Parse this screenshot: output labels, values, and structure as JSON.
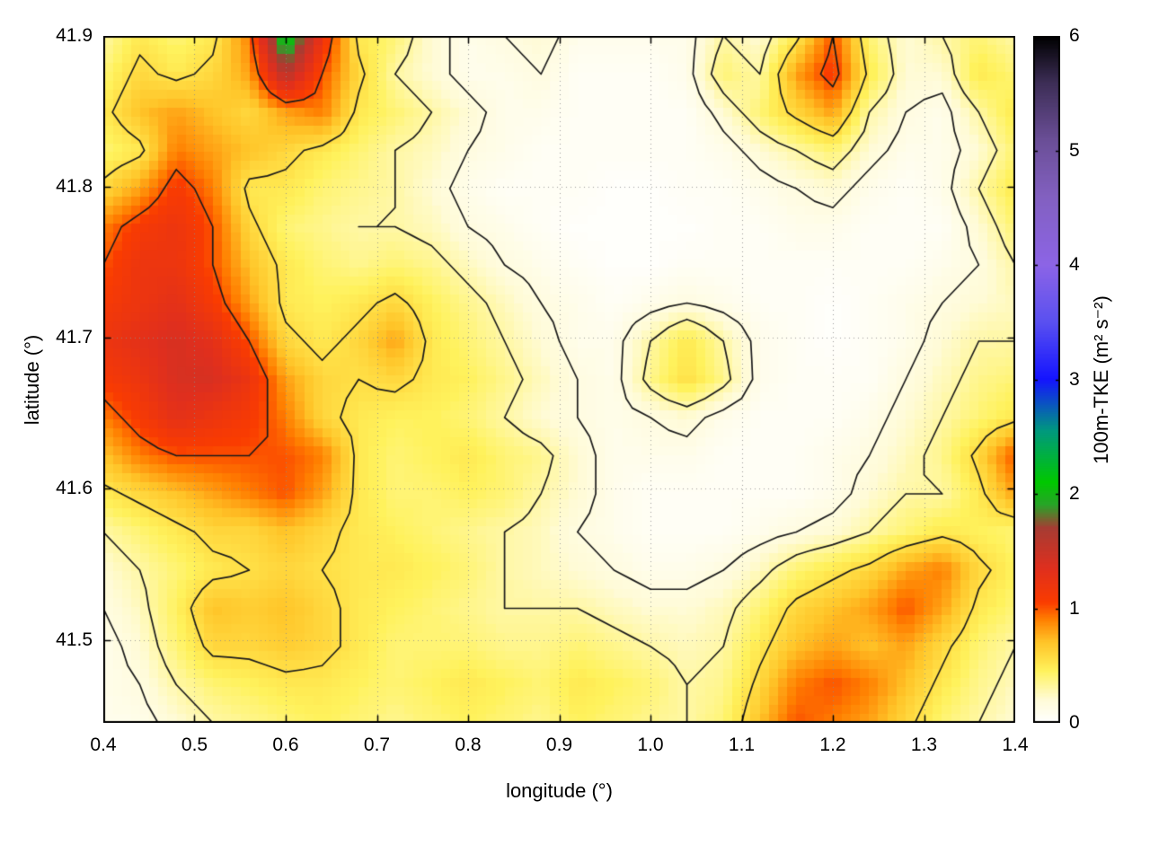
{
  "chart_data": {
    "type": "heatmap",
    "title": "",
    "xlabel": "longitude (°)",
    "ylabel": "latitude (°)",
    "x_range": [
      0.4,
      1.4
    ],
    "y_range": [
      41.445,
      41.9
    ],
    "x_tick_values": [
      0.4,
      0.5,
      0.6,
      0.7,
      0.8,
      0.9,
      1.0,
      1.1,
      1.2,
      1.3,
      1.4
    ],
    "x_tick_labels": [
      "0.4",
      "0.5",
      "0.6",
      "0.7",
      "0.8",
      "0.9",
      "1.0",
      "1.1",
      "1.2",
      "1.3",
      "1.4"
    ],
    "y_tick_values": [
      41.5,
      41.6,
      41.7,
      41.8,
      41.9
    ],
    "y_tick_labels": [
      "41.5",
      "41.6",
      "41.7",
      "41.8",
      "41.9"
    ],
    "grid_on": true,
    "colorbar": {
      "label": "100m-TKE (m² s⁻²)",
      "range": [
        0,
        6
      ],
      "tick_values": [
        0,
        1,
        2,
        3,
        4,
        5,
        6
      ],
      "tick_labels": [
        "0",
        "1",
        "2",
        "3",
        "4",
        "5",
        "6"
      ]
    },
    "palette": [
      [
        0.0,
        "#ffffff"
      ],
      [
        0.2,
        "#fffbd6"
      ],
      [
        0.45,
        "#fff25c"
      ],
      [
        0.7,
        "#ffc428"
      ],
      [
        0.9,
        "#ff7f00"
      ],
      [
        1.05,
        "#fa3c00"
      ],
      [
        1.35,
        "#df2f1e"
      ],
      [
        1.7,
        "#a63c33"
      ],
      [
        1.9,
        "#28a428"
      ],
      [
        2.1,
        "#00c800"
      ],
      [
        2.55,
        "#00997e"
      ],
      [
        3.0,
        "#1414ff"
      ],
      [
        3.5,
        "#5a50f0"
      ],
      [
        4.0,
        "#8c64e6"
      ],
      [
        4.6,
        "#8260c0"
      ],
      [
        5.1,
        "#6a4e96"
      ],
      [
        5.6,
        "#3c2d55"
      ],
      [
        6.0,
        "#000000"
      ]
    ],
    "contour_levels": [
      0.15,
      0.3,
      0.55,
      1.0
    ],
    "contour_color": "#1b1b1b",
    "grid": {
      "nx": 26,
      "ny": 19,
      "lon_start": 0.4,
      "lon_step": 0.04,
      "lat_top": 41.9,
      "lat_step": -0.025,
      "values_rows_top_to_bottom": [
        [
          0.3,
          0.5,
          0.4,
          0.5,
          0.9,
          2.2,
          1.2,
          0.5,
          0.4,
          0.2,
          0.1,
          0.15,
          0.2,
          0.1,
          0.1,
          0.1,
          0.1,
          0.3,
          0.2,
          0.5,
          1.0,
          0.4,
          0.2,
          0.3,
          0.4,
          0.3
        ],
        [
          0.4,
          0.6,
          0.5,
          0.6,
          0.8,
          1.6,
          1.0,
          0.6,
          0.3,
          0.2,
          0.1,
          0.1,
          0.15,
          0.05,
          0.05,
          0.05,
          0.1,
          0.4,
          0.3,
          0.8,
          1.1,
          0.5,
          0.2,
          0.2,
          0.5,
          0.4
        ],
        [
          0.5,
          0.7,
          0.8,
          0.7,
          0.6,
          0.8,
          0.9,
          0.5,
          0.4,
          0.3,
          0.2,
          0.1,
          0.1,
          0.05,
          0.05,
          0.05,
          0.05,
          0.2,
          0.4,
          0.6,
          0.8,
          0.3,
          0.15,
          0.1,
          0.3,
          0.5
        ],
        [
          0.4,
          0.5,
          0.9,
          0.8,
          0.7,
          0.6,
          0.5,
          0.4,
          0.3,
          0.25,
          0.15,
          0.1,
          0.05,
          0.05,
          0.05,
          0.05,
          0.05,
          0.1,
          0.2,
          0.3,
          0.4,
          0.2,
          0.1,
          0.1,
          0.2,
          0.4
        ],
        [
          0.6,
          0.8,
          1.1,
          0.9,
          0.5,
          0.5,
          0.4,
          0.35,
          0.3,
          0.2,
          0.1,
          0.05,
          0.05,
          0.05,
          0.02,
          0.02,
          0.05,
          0.05,
          0.1,
          0.15,
          0.2,
          0.1,
          0.05,
          0.1,
          0.3,
          0.5
        ],
        [
          0.9,
          1.1,
          1.2,
          1.0,
          0.6,
          0.4,
          0.35,
          0.3,
          0.3,
          0.25,
          0.15,
          0.1,
          0.05,
          0.02,
          0.02,
          0.02,
          0.02,
          0.05,
          0.05,
          0.1,
          0.1,
          0.05,
          0.05,
          0.05,
          0.2,
          0.4
        ],
        [
          1.0,
          1.2,
          1.2,
          1.0,
          0.7,
          0.5,
          0.4,
          0.35,
          0.4,
          0.35,
          0.25,
          0.15,
          0.1,
          0.05,
          0.02,
          0.02,
          0.05,
          0.05,
          0.05,
          0.05,
          0.05,
          0.05,
          0.05,
          0.1,
          0.15,
          0.3
        ],
        [
          1.1,
          1.2,
          1.3,
          1.1,
          0.8,
          0.5,
          0.45,
          0.5,
          0.6,
          0.45,
          0.35,
          0.25,
          0.15,
          0.1,
          0.05,
          0.1,
          0.15,
          0.1,
          0.05,
          0.05,
          0.02,
          0.05,
          0.1,
          0.15,
          0.2,
          0.25
        ],
        [
          1.2,
          1.3,
          1.4,
          1.3,
          1.0,
          0.6,
          0.5,
          0.6,
          0.8,
          0.5,
          0.4,
          0.3,
          0.2,
          0.1,
          0.1,
          0.3,
          0.5,
          0.3,
          0.1,
          0.05,
          0.02,
          0.05,
          0.1,
          0.2,
          0.3,
          0.3
        ],
        [
          1.1,
          1.2,
          1.4,
          1.4,
          1.2,
          0.8,
          0.6,
          0.55,
          0.6,
          0.5,
          0.45,
          0.35,
          0.25,
          0.15,
          0.1,
          0.35,
          0.55,
          0.35,
          0.1,
          0.05,
          0.05,
          0.05,
          0.15,
          0.25,
          0.35,
          0.4
        ],
        [
          0.9,
          1.1,
          1.3,
          1.2,
          1.1,
          0.9,
          0.6,
          0.5,
          0.45,
          0.45,
          0.4,
          0.3,
          0.2,
          0.15,
          0.1,
          0.15,
          0.2,
          0.1,
          0.05,
          0.05,
          0.05,
          0.1,
          0.2,
          0.3,
          0.4,
          0.5
        ],
        [
          0.7,
          0.9,
          1.0,
          1.0,
          1.0,
          1.0,
          0.9,
          0.5,
          0.4,
          0.45,
          0.5,
          0.4,
          0.35,
          0.2,
          0.1,
          0.1,
          0.1,
          0.05,
          0.05,
          0.05,
          0.1,
          0.15,
          0.25,
          0.35,
          0.6,
          1.0
        ],
        [
          0.5,
          0.6,
          0.7,
          0.8,
          0.9,
          1.0,
          0.8,
          0.5,
          0.4,
          0.4,
          0.45,
          0.4,
          0.3,
          0.2,
          0.1,
          0.05,
          0.05,
          0.05,
          0.05,
          0.05,
          0.1,
          0.2,
          0.3,
          0.3,
          0.5,
          0.8
        ],
        [
          0.3,
          0.4,
          0.5,
          0.6,
          0.6,
          0.7,
          0.6,
          0.5,
          0.45,
          0.4,
          0.35,
          0.3,
          0.25,
          0.15,
          0.1,
          0.05,
          0.05,
          0.05,
          0.1,
          0.15,
          0.2,
          0.3,
          0.4,
          0.5,
          0.45,
          0.4
        ],
        [
          0.2,
          0.3,
          0.4,
          0.5,
          0.55,
          0.6,
          0.55,
          0.5,
          0.5,
          0.45,
          0.4,
          0.3,
          0.25,
          0.2,
          0.15,
          0.1,
          0.1,
          0.15,
          0.25,
          0.4,
          0.5,
          0.6,
          0.8,
          0.9,
          0.6,
          0.45
        ],
        [
          0.15,
          0.25,
          0.45,
          0.7,
          0.65,
          0.7,
          0.6,
          0.5,
          0.45,
          0.4,
          0.35,
          0.3,
          0.3,
          0.3,
          0.25,
          0.2,
          0.2,
          0.25,
          0.4,
          0.6,
          0.7,
          0.8,
          1.0,
          0.8,
          0.5,
          0.4
        ],
        [
          0.1,
          0.2,
          0.4,
          0.6,
          0.6,
          0.65,
          0.6,
          0.5,
          0.4,
          0.4,
          0.4,
          0.35,
          0.35,
          0.4,
          0.35,
          0.3,
          0.25,
          0.3,
          0.5,
          0.7,
          0.8,
          0.7,
          0.8,
          0.6,
          0.4,
          0.3
        ],
        [
          0.1,
          0.15,
          0.3,
          0.4,
          0.45,
          0.5,
          0.5,
          0.45,
          0.4,
          0.45,
          0.5,
          0.45,
          0.4,
          0.5,
          0.45,
          0.4,
          0.3,
          0.35,
          0.6,
          0.9,
          1.0,
          0.9,
          0.7,
          0.5,
          0.35,
          0.25
        ],
        [
          0.1,
          0.1,
          0.2,
          0.3,
          0.35,
          0.4,
          0.45,
          0.4,
          0.35,
          0.4,
          0.45,
          0.4,
          0.35,
          0.45,
          0.4,
          0.35,
          0.3,
          0.4,
          0.7,
          1.0,
          0.9,
          0.8,
          0.6,
          0.4,
          0.3,
          0.2
        ]
      ]
    }
  }
}
